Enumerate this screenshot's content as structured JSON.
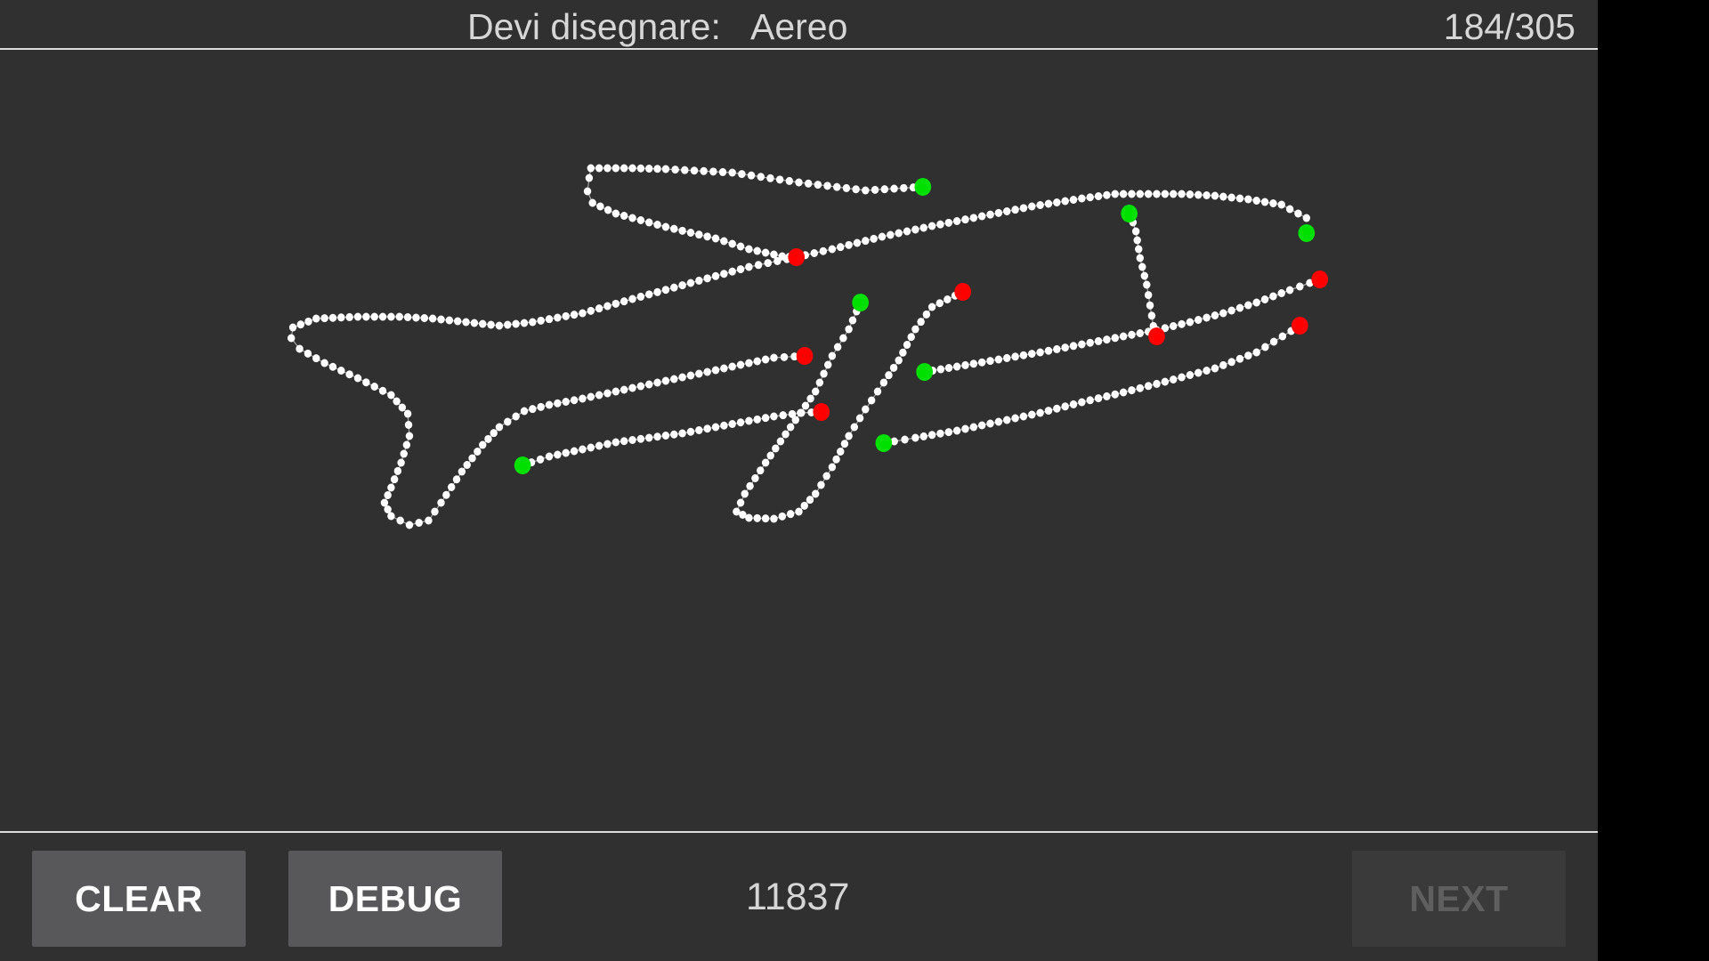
{
  "header": {
    "prompt_label": "Devi disegnare:",
    "prompt_word": "Aereo",
    "progress": "184/305"
  },
  "footer": {
    "clear_label": "CLEAR",
    "debug_label": "DEBUG",
    "counter": "11837",
    "next_label": "NEXT",
    "next_enabled": false
  },
  "colors": {
    "background": "#303030",
    "stroke_point": "#ffffff",
    "stroke_start": "#00e000",
    "stroke_end": "#ff0000"
  }
}
